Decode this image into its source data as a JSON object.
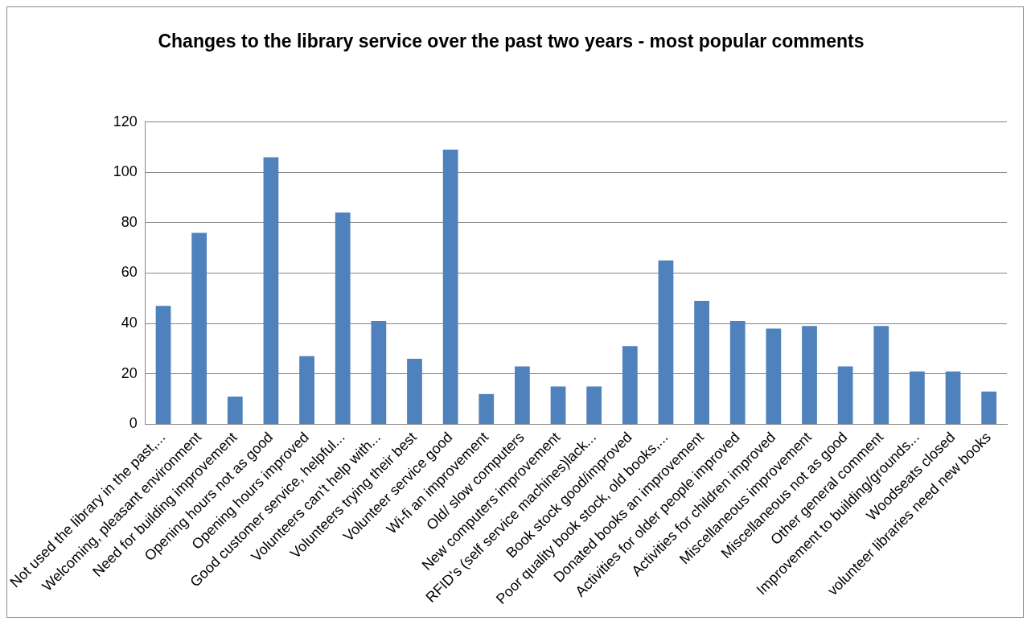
{
  "chart_data": {
    "type": "bar",
    "title": "Changes to the library service over the past two years - most popular comments",
    "categories": [
      "Not used the library in the past,...",
      "Welcoming, pleasant environment",
      "Need for building improvement",
      "Opening hours not as good",
      "Opening hours improved",
      "Good customer service, helpful...",
      "Volunteers can't help with...",
      "Volunteers trying their best",
      "Volunteer service good",
      "Wi-fi an improvement",
      "Old/ slow computers",
      "New computers improvement",
      "RFID's (self service machines)lack...",
      "Book stock good/improved",
      "Poor quality book stock, old books,...",
      "Donated books an improvement",
      "Activities for older people improved",
      "Activities for children improved",
      "Miscellaneous improvement",
      "Miscellaneous not as good",
      "Other general comment",
      "Improvement to building/grounds...",
      "Woodseats closed",
      "volunteer libraries need new books"
    ],
    "values": [
      47,
      76,
      11,
      106,
      27,
      84,
      41,
      26,
      109,
      12,
      23,
      15,
      15,
      31,
      65,
      49,
      41,
      38,
      39,
      23,
      39,
      21,
      21,
      13
    ],
    "color": "#4f81bd",
    "ylim": [
      0,
      120
    ],
    "yticks": [
      0,
      20,
      40,
      60,
      80,
      100,
      120
    ],
    "grid": "y",
    "legend": false
  }
}
